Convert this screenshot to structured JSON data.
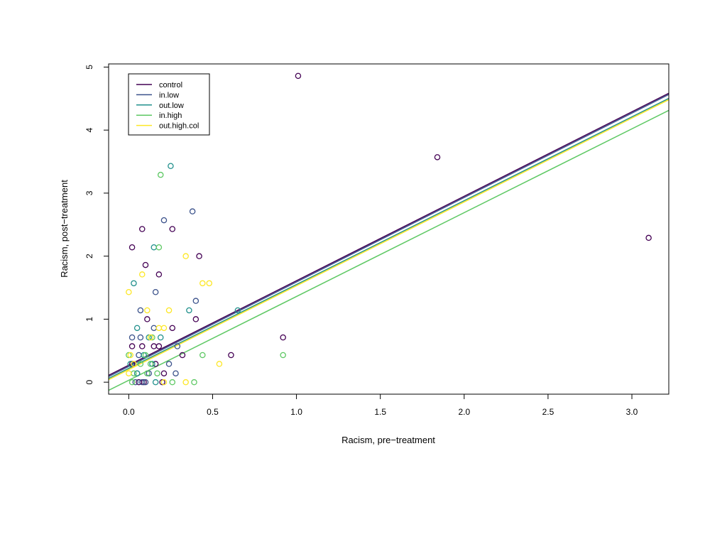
{
  "chart_data": {
    "type": "scatter",
    "xlabel": "Racism, pre−treatment",
    "ylabel": "Racism, post−treatment",
    "xlim": [
      -0.12,
      3.22
    ],
    "ylim": [
      -0.19,
      5.05
    ],
    "x_ticks": [
      {
        "value": 0,
        "label": "0.0"
      },
      {
        "value": 0.5,
        "label": "0.5"
      },
      {
        "value": 1,
        "label": "1.0"
      },
      {
        "value": 1.5,
        "label": "1.5"
      },
      {
        "value": 2,
        "label": "2.0"
      },
      {
        "value": 2.5,
        "label": "2.5"
      },
      {
        "value": 3,
        "label": "3.0"
      }
    ],
    "y_ticks": [
      {
        "value": 0,
        "label": "0"
      },
      {
        "value": 1,
        "label": "1"
      },
      {
        "value": 2,
        "label": "2"
      },
      {
        "value": 3,
        "label": "3"
      },
      {
        "value": 4,
        "label": "4"
      },
      {
        "value": 5,
        "label": "5"
      }
    ],
    "grid": false,
    "legend_position": "top-left",
    "series": [
      {
        "name": "control",
        "color": "#440154",
        "fit": {
          "intercept": 0.27,
          "slope": 1.34
        },
        "points": [
          [
            1.01,
            4.86
          ],
          [
            1.84,
            3.57
          ],
          [
            3.1,
            2.29
          ],
          [
            0.08,
            2.43
          ],
          [
            0.26,
            2.43
          ],
          [
            0.02,
            2.14
          ],
          [
            0.42,
            2.0
          ],
          [
            0.1,
            1.86
          ],
          [
            0.18,
            1.71
          ],
          [
            0.11,
            1.0
          ],
          [
            0.4,
            1.0
          ],
          [
            0.26,
            0.86
          ],
          [
            0.92,
            0.71
          ],
          [
            0.61,
            0.43
          ],
          [
            0.32,
            0.43
          ],
          [
            0.02,
            0.57
          ],
          [
            0.08,
            0.57
          ],
          [
            0.15,
            0.57
          ],
          [
            0.18,
            0.57
          ],
          [
            0.02,
            0.29
          ],
          [
            0.16,
            0.29
          ],
          [
            0.06,
            0.0
          ],
          [
            0.09,
            0.0
          ],
          [
            0.2,
            0.0
          ],
          [
            0.21,
            0.14
          ]
        ]
      },
      {
        "name": "in.low",
        "color": "#3B528B",
        "fit": {
          "intercept": 0.25,
          "slope": 1.34
        },
        "points": [
          [
            0.38,
            2.71
          ],
          [
            0.21,
            2.57
          ],
          [
            0.16,
            1.43
          ],
          [
            0.4,
            1.29
          ],
          [
            0.07,
            1.14
          ],
          [
            0.15,
            0.86
          ],
          [
            0.29,
            0.57
          ],
          [
            0.02,
            0.71
          ],
          [
            0.06,
            0.43
          ],
          [
            0.24,
            0.29
          ],
          [
            0.28,
            0.14
          ],
          [
            0.12,
            0.14
          ],
          [
            0.04,
            0.0
          ],
          [
            0.08,
            0.0
          ],
          [
            0.1,
            0.0
          ],
          [
            0.05,
            0.14
          ],
          [
            0.07,
            0.71
          ]
        ]
      },
      {
        "name": "out.low",
        "color": "#21908C",
        "fit": {
          "intercept": 0.22,
          "slope": 1.33
        },
        "points": [
          [
            0.25,
            3.43
          ],
          [
            0.15,
            2.14
          ],
          [
            0.03,
            1.57
          ],
          [
            0.36,
            1.14
          ],
          [
            0.65,
            1.14
          ],
          [
            0.05,
            0.86
          ],
          [
            0.12,
            0.71
          ],
          [
            0.19,
            0.71
          ],
          [
            0.09,
            0.43
          ],
          [
            0.14,
            0.29
          ],
          [
            0.05,
            0.14
          ],
          [
            0.16,
            0.0
          ],
          [
            0.01,
            0.29
          ]
        ]
      },
      {
        "name": "in.high",
        "color": "#5DC863",
        "fit": {
          "intercept": 0.03,
          "slope": 1.33
        },
        "points": [
          [
            0.19,
            3.29
          ],
          [
            0.18,
            2.14
          ],
          [
            0.44,
            0.43
          ],
          [
            0.92,
            0.43
          ],
          [
            0.1,
            0.43
          ],
          [
            0.0,
            0.43
          ],
          [
            0.13,
            0.29
          ],
          [
            0.07,
            0.29
          ],
          [
            0.03,
            0.14
          ],
          [
            0.17,
            0.14
          ],
          [
            0.11,
            0.14
          ],
          [
            0.26,
            0.0
          ],
          [
            0.39,
            0.0
          ],
          [
            0.02,
            0.0
          ],
          [
            0.14,
            0.71
          ]
        ]
      },
      {
        "name": "out.high.col",
        "color": "#FDE725",
        "fit": {
          "intercept": 0.2,
          "slope": 1.33
        },
        "points": [
          [
            0.34,
            2.0
          ],
          [
            0.08,
            1.71
          ],
          [
            0.0,
            1.43
          ],
          [
            0.44,
            1.57
          ],
          [
            0.48,
            1.57
          ],
          [
            0.11,
            1.14
          ],
          [
            0.24,
            1.14
          ],
          [
            0.18,
            0.86
          ],
          [
            0.21,
            0.86
          ],
          [
            0.54,
            0.29
          ],
          [
            0.01,
            0.43
          ],
          [
            0.13,
            0.71
          ],
          [
            0.0,
            0.14
          ],
          [
            0.34,
            0.0
          ],
          [
            0.21,
            0.0
          ],
          [
            0.03,
            0.29
          ]
        ]
      }
    ]
  }
}
